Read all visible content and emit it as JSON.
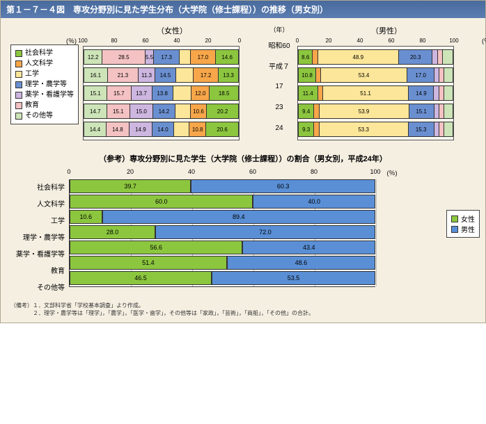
{
  "title": "第１－７－４図　専攻分野別に見た学生分布（大学院（修士課程））の推移（男女別）",
  "colors": {
    "社会科学": "#8cc63f",
    "人文科学": "#f7a64a",
    "工学": "#fce699",
    "理学・農学等": "#6a8fd0",
    "薬学・看護学等": "#cdb6e0",
    "教育": "#f4c2c2",
    "その他等": "#cde4b8",
    "background": "#f5efe2",
    "border": "#333333",
    "female_bar": "#8cc63f",
    "male_bar": "#5a8fd6"
  },
  "legend": [
    "社会科学",
    "人文科学",
    "工学",
    "理学・農学等",
    "薬学・看護学等",
    "教育",
    "その他等"
  ],
  "female_title": "（女性）",
  "male_title": "（男性）",
  "year_header": "（年）",
  "pct": "(％)",
  "years": [
    "昭和60",
    "平成７",
    "17",
    "23",
    "24"
  ],
  "axis_female_ticks": [
    100,
    80,
    60,
    40,
    20,
    0
  ],
  "axis_male_ticks": [
    0,
    20,
    40,
    60,
    80,
    100
  ],
  "female_rows": [
    [
      {
        "v": 14.6,
        "c": "社会科学"
      },
      {
        "v": 17.0,
        "c": "人文科学"
      },
      {
        "v": 7.0,
        "c": "工学",
        "h": true
      },
      {
        "v": 17.3,
        "c": "理学・農学等"
      },
      {
        "v": 5.5,
        "c": "薬学・看護学等"
      },
      {
        "v": 28.5,
        "c": "教育"
      },
      {
        "v": 12.2,
        "c": "その他等"
      }
    ],
    [
      {
        "v": 13.3,
        "c": "社会科学"
      },
      {
        "v": 17.2,
        "c": "人文科学"
      },
      {
        "v": 12.0,
        "c": "工学",
        "h": true
      },
      {
        "v": 14.5,
        "c": "理学・農学等"
      },
      {
        "v": 11.3,
        "c": "薬学・看護学等"
      },
      {
        "v": 21.3,
        "c": "教育"
      },
      {
        "v": 16.1,
        "c": "その他等"
      }
    ],
    [
      {
        "v": 18.5,
        "c": "社会科学"
      },
      {
        "v": 12.0,
        "c": "人文科学"
      },
      {
        "v": 12.0,
        "c": "工学",
        "h": true
      },
      {
        "v": 13.8,
        "c": "理学・農学等"
      },
      {
        "v": 13.7,
        "c": "薬学・看護学等"
      },
      {
        "v": 15.7,
        "c": "教育"
      },
      {
        "v": 15.1,
        "c": "その他等"
      }
    ],
    [
      {
        "v": 20.2,
        "c": "社会科学"
      },
      {
        "v": 10.6,
        "c": "人文科学"
      },
      {
        "v": 10.0,
        "c": "工学",
        "h": true
      },
      {
        "v": 14.2,
        "c": "理学・農学等"
      },
      {
        "v": 15.0,
        "c": "薬学・看護学等"
      },
      {
        "v": 15.1,
        "c": "教育"
      },
      {
        "v": 14.7,
        "c": "その他等"
      }
    ],
    [
      {
        "v": 20.6,
        "c": "社会科学"
      },
      {
        "v": 10.8,
        "c": "人文科学"
      },
      {
        "v": 10.0,
        "c": "工学",
        "h": true
      },
      {
        "v": 14.0,
        "c": "理学・農学等"
      },
      {
        "v": 14.9,
        "c": "薬学・看護学等"
      },
      {
        "v": 14.8,
        "c": "教育"
      },
      {
        "v": 14.4,
        "c": "その他等"
      }
    ]
  ],
  "male_rows": [
    [
      {
        "v": 8.6,
        "c": "社会科学"
      },
      {
        "v": 3.0,
        "c": "人文科学",
        "h": true
      },
      {
        "v": 48.9,
        "c": "工学"
      },
      {
        "v": 20.3,
        "c": "理学・農学等"
      },
      {
        "v": 3.0,
        "c": "薬学・看護学等",
        "h": true
      },
      {
        "v": 3.0,
        "c": "教育",
        "h": true
      },
      {
        "v": 6.0,
        "c": "その他等",
        "h": true
      }
    ],
    [
      {
        "v": 10.8,
        "c": "社会科学"
      },
      {
        "v": 3.0,
        "c": "人文科学",
        "h": true
      },
      {
        "v": 53.4,
        "c": "工学"
      },
      {
        "v": 17.0,
        "c": "理学・農学等"
      },
      {
        "v": 3.0,
        "c": "薬学・看護学等",
        "h": true
      },
      {
        "v": 3.0,
        "c": "教育",
        "h": true
      },
      {
        "v": 5.0,
        "c": "その他等",
        "h": true
      }
    ],
    [
      {
        "v": 11.4,
        "c": "社会科学"
      },
      {
        "v": 3.0,
        "c": "人文科学",
        "h": true
      },
      {
        "v": 51.1,
        "c": "工学"
      },
      {
        "v": 14.9,
        "c": "理学・農学等"
      },
      {
        "v": 3.0,
        "c": "薬学・看護学等",
        "h": true
      },
      {
        "v": 3.0,
        "c": "教育",
        "h": true
      },
      {
        "v": 5.0,
        "c": "その他等",
        "h": true
      }
    ],
    [
      {
        "v": 9.4,
        "c": "社会科学"
      },
      {
        "v": 3.0,
        "c": "人文科学",
        "h": true
      },
      {
        "v": 53.9,
        "c": "工学"
      },
      {
        "v": 15.1,
        "c": "理学・農学等"
      },
      {
        "v": 3.0,
        "c": "薬学・看護学等",
        "h": true
      },
      {
        "v": 3.0,
        "c": "教育",
        "h": true
      },
      {
        "v": 5.0,
        "c": "その他等",
        "h": true
      }
    ],
    [
      {
        "v": 9.3,
        "c": "社会科学"
      },
      {
        "v": 3.0,
        "c": "人文科学",
        "h": true
      },
      {
        "v": 53.3,
        "c": "工学"
      },
      {
        "v": 15.3,
        "c": "理学・農学等"
      },
      {
        "v": 3.0,
        "c": "薬学・看護学等",
        "h": true
      },
      {
        "v": 3.0,
        "c": "教育",
        "h": true
      },
      {
        "v": 5.0,
        "c": "その他等",
        "h": true
      }
    ]
  ],
  "reference": {
    "title": "（参考）専攻分野別に見た学生（大学院（修士課程））の割合（男女別，平成24年）",
    "axis_ticks": [
      0,
      20,
      40,
      60,
      80,
      100
    ],
    "pct": "(％)",
    "categories": [
      "社会科学",
      "人文科学",
      "工学",
      "理学・農学等",
      "薬学・看護学等",
      "教育",
      "その他等"
    ],
    "rows": [
      {
        "f": 39.7,
        "m": 60.3
      },
      {
        "f": 60.0,
        "m": 40.0
      },
      {
        "f": 10.6,
        "m": 89.4
      },
      {
        "f": 28.0,
        "m": 72.0
      },
      {
        "f": 56.6,
        "m": 43.4
      },
      {
        "f": 51.4,
        "m": 48.6
      },
      {
        "f": 46.5,
        "m": 53.5
      }
    ],
    "legend": {
      "female": "女性",
      "male": "男性"
    }
  },
  "footnotes": [
    "（備考）１．文部科学省「学校基本調査」より作成。",
    "　　　　２．理学・農学等は「理学」，「農学」，「医学・歯学」，その他等は「家政」，「芸術」，「商船」，「その他」の合計。"
  ]
}
